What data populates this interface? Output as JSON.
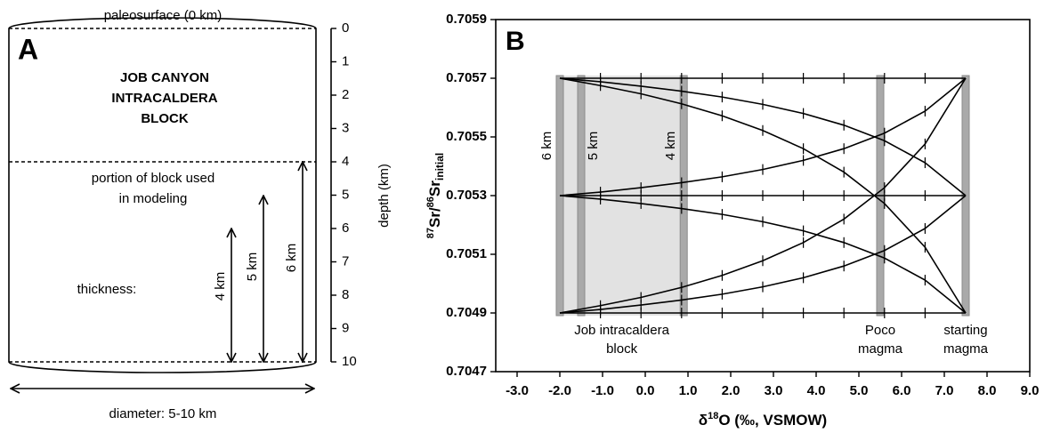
{
  "diagram": {
    "panel": "A",
    "paleosurface": "paleosurface (0 km)",
    "block_title": [
      "JOB CANYON",
      "INTRACALDERA",
      "BLOCK"
    ],
    "portion": [
      "portion of block used",
      "in modeling"
    ],
    "thickness": "thickness:",
    "arrows": [
      "4 km",
      "5 km",
      "6 km"
    ],
    "diameter": "diameter: 5-10 km",
    "depth_label": "depth (km)",
    "depth_ticks": [
      0,
      1,
      2,
      3,
      4,
      5,
      6,
      7,
      8,
      9,
      10
    ]
  },
  "chart_data": {
    "type": "line",
    "panel": "B",
    "xlabel": {
      "delta": "δ",
      "sup": "18",
      "rest": "O (‰, VSMOW)"
    },
    "ylabel": {
      "sup1": "87",
      "a": "Sr/",
      "sup2": "86",
      "b": "Sr",
      "sub": "initial"
    },
    "xlim": [
      -3.5,
      9
    ],
    "ylim": [
      0.7047,
      0.7059
    ],
    "xticks": [
      {
        "value": -3,
        "label": "-3.0"
      },
      {
        "value": -2,
        "label": "-2.0"
      },
      {
        "value": -1,
        "label": "-1.0"
      },
      {
        "value": 0,
        "label": "0.0"
      },
      {
        "value": 1,
        "label": "1.0"
      },
      {
        "value": 2,
        "label": "2.0"
      },
      {
        "value": 3,
        "label": "3.0"
      },
      {
        "value": 4,
        "label": "4.0"
      },
      {
        "value": 5,
        "label": "5.0"
      },
      {
        "value": 6,
        "label": "6.0"
      },
      {
        "value": 7,
        "label": "7.0"
      },
      {
        "value": 8,
        "label": "8.0"
      },
      {
        "value": 9,
        "label": "9.0"
      }
    ],
    "yticks": [
      0.7047,
      0.7049,
      0.7051,
      0.7053,
      0.7055,
      0.7057,
      0.7059
    ],
    "x": [
      -2,
      -1.05,
      -0.1,
      0.85,
      1.8,
      2.75,
      3.7,
      4.65,
      5.6,
      6.55,
      7.5
    ],
    "series": [
      {
        "color": "#000000",
        "values": [
          0.7057,
          0.7057,
          0.7057,
          0.7057,
          0.7057,
          0.7057,
          0.7057,
          0.7057,
          0.7057,
          0.7057,
          0.7057
        ]
      },
      {
        "color": "#000000",
        "values": [
          0.7057,
          0.705688,
          0.705673,
          0.705656,
          0.705636,
          0.705611,
          0.70558,
          0.70554,
          0.705487,
          0.705412,
          0.7053
        ]
      },
      {
        "color": "#000000",
        "values": [
          0.7057,
          0.705675,
          0.705647,
          0.705613,
          0.705572,
          0.705522,
          0.70546,
          0.70538,
          0.705273,
          0.705124,
          0.7049
        ]
      },
      {
        "color": "#000000",
        "values": [
          0.7053,
          0.7053,
          0.7053,
          0.7053,
          0.7053,
          0.7053,
          0.7053,
          0.7053,
          0.7053,
          0.7053,
          0.7053
        ]
      },
      {
        "color": "#000000",
        "values": [
          0.7053,
          0.705312,
          0.705327,
          0.705344,
          0.705364,
          0.705389,
          0.70542,
          0.70546,
          0.705513,
          0.705588,
          0.7057
        ]
      },
      {
        "color": "#000000",
        "values": [
          0.7053,
          0.705288,
          0.705273,
          0.705256,
          0.705236,
          0.705211,
          0.70518,
          0.70514,
          0.705087,
          0.705012,
          0.7049
        ]
      },
      {
        "color": "#000000",
        "values": [
          0.7049,
          0.7049,
          0.7049,
          0.7049,
          0.7049,
          0.7049,
          0.7049,
          0.7049,
          0.7049,
          0.7049,
          0.7049
        ]
      },
      {
        "color": "#000000",
        "values": [
          0.7049,
          0.704925,
          0.704953,
          0.704987,
          0.705028,
          0.705078,
          0.70514,
          0.70522,
          0.705327,
          0.705476,
          0.7057
        ]
      },
      {
        "color": "#000000",
        "values": [
          0.7049,
          0.704912,
          0.704927,
          0.704944,
          0.704964,
          0.704989,
          0.70502,
          0.70506,
          0.705113,
          0.705188,
          0.7053
        ]
      }
    ],
    "shaded_range": [
      -2,
      0.9
    ],
    "bands": [
      {
        "x": -2,
        "label": "6 km"
      },
      {
        "x": -1.5,
        "label": "5 km"
      },
      {
        "x": 0.9,
        "label": "4 km"
      },
      {
        "x": 5.5
      },
      {
        "x": 7.5
      }
    ],
    "annotations": [
      [
        "Job intracaldera",
        "block"
      ],
      [
        "Poco",
        "magma"
      ],
      [
        "starting",
        "magma"
      ]
    ]
  }
}
